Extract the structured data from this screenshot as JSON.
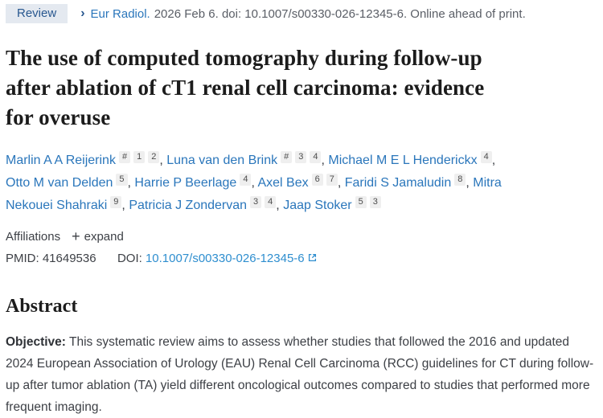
{
  "header": {
    "badge": "Review",
    "chevron": "›",
    "journal_link": "Eur Radiol.",
    "citation_rest": "2026 Feb 6. doi: 10.1007/s00330-026-12345-6. Online ahead of print."
  },
  "title": "The use of computed tomography during follow-up after ablation of cT1 renal cell carcinoma: evidence for overuse",
  "title_lines": [
    "The use of computed tomography during follow-up",
    "after ablation of cT1 renal cell carcinoma: evidence",
    "for overuse"
  ],
  "authors": [
    {
      "name": "Marlin A A Reijerink",
      "sups": [
        "#",
        "1",
        "2"
      ]
    },
    {
      "name": "Luna van den Brink",
      "sups": [
        "#",
        "3",
        "4"
      ]
    },
    {
      "name": "Michael M E L Henderickx",
      "sups": [
        "4"
      ]
    },
    {
      "name": "Otto M van Delden",
      "sups": [
        "5"
      ]
    },
    {
      "name": "Harrie P Beerlage",
      "sups": [
        "4"
      ]
    },
    {
      "name": "Axel Bex",
      "sups": [
        "6",
        "7"
      ]
    },
    {
      "name": "Faridi S Jamaludin",
      "sups": [
        "8"
      ]
    },
    {
      "name": "Mitra Nekouei Shahraki",
      "sups": [
        "9"
      ]
    },
    {
      "name": "Patricia J Zondervan",
      "sups": [
        "3",
        "4"
      ]
    },
    {
      "name": "Jaap Stoker",
      "sups": [
        "5",
        "3"
      ]
    }
  ],
  "author_separator": ", ",
  "affiliations": {
    "label": "Affiliations",
    "plus": "+",
    "expand_label": "expand"
  },
  "ids": {
    "pmid_label": "PMID:",
    "pmid_value": "41649536",
    "doi_label": "DOI:",
    "doi_link": "10.1007/s00330-026-12345-6"
  },
  "abstract": {
    "heading": "Abstract",
    "objective_label": "Objective:",
    "objective_text": " This systematic review aims to assess whether studies that followed the 2016 and updated 2024 European Association of Urology (EAU) Renal Cell Carcinoma (RCC) guidelines for CT during follow-up after tumor ablation (TA) yield different oncological outcomes compared to studies that performed more frequent imaging."
  },
  "colors": {
    "link_blue": "#2a76bb",
    "doi_blue": "#2e8ecf",
    "badge_bg": "#e4e9f0",
    "badge_text": "#28578f",
    "body_text": "#3d4046",
    "citation_gray": "#5a5e66",
    "title_black": "#1c1c1c",
    "sup_bg": "#efefef"
  }
}
